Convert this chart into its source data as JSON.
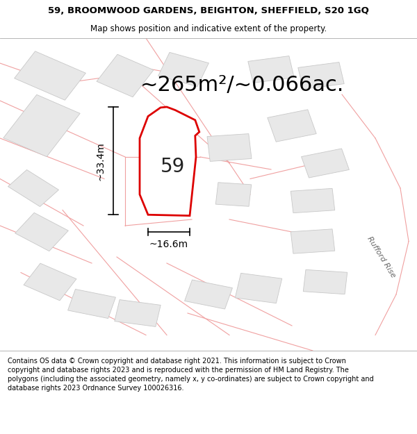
{
  "title_line1": "59, BROOMWOOD GARDENS, BEIGHTON, SHEFFIELD, S20 1GQ",
  "title_line2": "Map shows position and indicative extent of the property.",
  "area_text": "~265m²/~0.066ac.",
  "property_number": "59",
  "dim_width": "~16.6m",
  "dim_height": "~33.4m",
  "footer_text": "Contains OS data © Crown copyright and database right 2021. This information is subject to Crown copyright and database rights 2023 and is reproduced with the permission of HM Land Registry. The polygons (including the associated geometry, namely x, y co-ordinates) are subject to Crown copyright and database rights 2023 Ordnance Survey 100026316.",
  "bg_color": "#ffffff",
  "map_bg": "#ffffff",
  "plot_fill": "#ffffff",
  "plot_edge": "#dd0000",
  "building_fill": "#e8e8e8",
  "building_edge": "#cccccc",
  "parcel_edge": "#f0a0a0",
  "parcel_fill": "#ffffff",
  "text_color": "#000000",
  "title_fontsize": 9.5,
  "subtitle_fontsize": 8.5,
  "area_fontsize": 22,
  "number_fontsize": 20,
  "dim_fontsize": 10,
  "footer_fontsize": 7.0,
  "road_label": "Rufford Rise",
  "road_label_rotation": -58
}
